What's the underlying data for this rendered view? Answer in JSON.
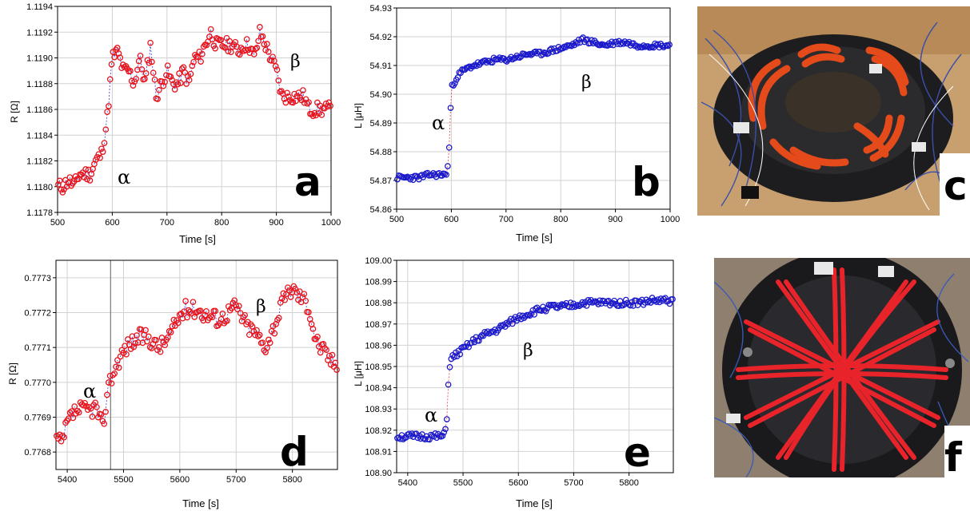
{
  "colors": {
    "red_marker": "#e8131b",
    "blue_marker": "#1a1acc",
    "blue_line": "#3a3ad8",
    "red_line": "#e0444a",
    "grid": "#d2d2d2"
  },
  "chart_data": [
    {
      "type": "scatter",
      "panel": "a",
      "xlabel": "Time [s]",
      "ylabel": "R [Ω]",
      "xlim": [
        500,
        1000
      ],
      "ylim": [
        1.1178,
        1.1194
      ],
      "xticks": [
        "500",
        "600",
        "700",
        "800",
        "900",
        "1000"
      ],
      "yticks": [
        "1.1178",
        "1.1180",
        "1.1182",
        "1.1184",
        "1.1186",
        "1.1188",
        "1.1190",
        "1.1192",
        "1.1194"
      ],
      "grid": true,
      "annotations": [
        "α",
        "β"
      ],
      "series": [
        {
          "x": [
            500,
            510,
            520,
            530,
            540,
            550,
            560,
            570,
            580,
            590,
            600,
            610,
            620,
            630,
            640,
            650,
            660,
            670,
            680,
            690,
            700,
            710,
            720,
            730,
            740,
            750,
            760,
            770,
            780,
            790,
            800,
            810,
            820,
            830,
            840,
            850,
            860,
            870,
            880,
            890,
            900,
            910,
            920,
            930,
            940,
            950,
            960,
            970,
            980,
            990,
            1000
          ],
          "y": [
            1.118,
            1.118,
            1.11805,
            1.118,
            1.1181,
            1.1181,
            1.1181,
            1.1182,
            1.11825,
            1.1185,
            1.119,
            1.11905,
            1.1189,
            1.1189,
            1.1188,
            1.119,
            1.1188,
            1.1191,
            1.1187,
            1.1188,
            1.1189,
            1.1188,
            1.1188,
            1.1189,
            1.1188,
            1.119,
            1.119,
            1.1191,
            1.1192,
            1.1191,
            1.1191,
            1.1191,
            1.1191,
            1.11905,
            1.1191,
            1.1191,
            1.119,
            1.1192,
            1.1191,
            1.119,
            1.1189,
            1.1187,
            1.1187,
            1.1187,
            1.1187,
            1.1187,
            1.1186,
            1.1186,
            1.1186,
            1.1186,
            1.1186
          ]
        }
      ]
    },
    {
      "type": "scatter",
      "panel": "b",
      "xlabel": "Time [s]",
      "ylabel": "L [μH]",
      "xlim": [
        500,
        1000
      ],
      "ylim": [
        54.86,
        54.93
      ],
      "xticks": [
        "500",
        "600",
        "700",
        "800",
        "900",
        "1000"
      ],
      "yticks": [
        "54.86",
        "54.87",
        "54.88",
        "54.89",
        "54.90",
        "54.91",
        "54.92",
        "54.93"
      ],
      "grid": true,
      "annotations": [
        "α",
        "β"
      ],
      "series": [
        {
          "x": [
            500,
            520,
            540,
            560,
            580,
            590,
            595,
            600,
            610,
            620,
            640,
            660,
            680,
            700,
            720,
            740,
            760,
            780,
            800,
            820,
            840,
            860,
            880,
            900,
            920,
            940,
            960,
            980,
            1000
          ],
          "y": [
            54.871,
            54.871,
            54.871,
            54.872,
            54.872,
            54.872,
            54.876,
            54.902,
            54.906,
            54.908,
            54.91,
            54.911,
            54.912,
            54.912,
            54.913,
            54.914,
            54.914,
            54.915,
            54.916,
            54.917,
            54.919,
            54.918,
            54.917,
            54.918,
            54.918,
            54.917,
            54.917,
            54.917,
            54.917
          ]
        }
      ]
    },
    {
      "type": "scatter",
      "panel": "d",
      "xlabel": "Time [s]",
      "ylabel": "R [Ω]",
      "xlim": [
        5380,
        5880
      ],
      "ylim": [
        0.77675,
        0.77735
      ],
      "xticks": [
        "5400",
        "5500",
        "5600",
        "5700",
        "5800"
      ],
      "yticks": [
        "0.7768",
        "0.7769",
        "0.7770",
        "0.7771",
        "0.7772",
        "0.7773"
      ],
      "grid": true,
      "annotations": [
        "α",
        "β"
      ],
      "series": [
        {
          "x": [
            5380,
            5390,
            5400,
            5410,
            5420,
            5430,
            5440,
            5450,
            5460,
            5465,
            5470,
            5480,
            5490,
            5500,
            5510,
            5520,
            5530,
            5540,
            5550,
            5560,
            5570,
            5580,
            5590,
            5600,
            5610,
            5620,
            5630,
            5640,
            5650,
            5660,
            5670,
            5680,
            5690,
            5700,
            5710,
            5720,
            5730,
            5740,
            5750,
            5760,
            5770,
            5780,
            5790,
            5800,
            5810,
            5820,
            5830,
            5840,
            5850,
            5860,
            5870,
            5880
          ],
          "y": [
            0.77684,
            0.77682,
            0.77688,
            0.77691,
            0.77692,
            0.77692,
            0.77692,
            0.77693,
            0.77689,
            0.77685,
            0.77698,
            0.77702,
            0.77706,
            0.77709,
            0.77711,
            0.77712,
            0.77713,
            0.77713,
            0.77712,
            0.7771,
            0.77711,
            0.77713,
            0.77716,
            0.77719,
            0.77721,
            0.77721,
            0.77721,
            0.7772,
            0.77719,
            0.77719,
            0.77718,
            0.77719,
            0.77721,
            0.77722,
            0.77719,
            0.77716,
            0.77715,
            0.77713,
            0.7771,
            0.77713,
            0.77717,
            0.77722,
            0.77725,
            0.77727,
            0.77725,
            0.77724,
            0.77721,
            0.77713,
            0.7771,
            0.77708,
            0.77706,
            0.77705
          ]
        }
      ]
    },
    {
      "type": "scatter",
      "panel": "e",
      "xlabel": "Time [s]",
      "ylabel": "L [μH]",
      "xlim": [
        5380,
        5880
      ],
      "ylim": [
        108.9,
        109.0
      ],
      "xticks": [
        "5400",
        "5500",
        "5600",
        "5700",
        "5800"
      ],
      "yticks": [
        "108.90",
        "108.91",
        "108.92",
        "108.93",
        "108.94",
        "108.95",
        "108.96",
        "108.97",
        "108.98",
        "108.99",
        "109.00"
      ],
      "grid": true,
      "annotations": [
        "α",
        "β"
      ],
      "series": [
        {
          "x": [
            5380,
            5400,
            5420,
            5440,
            5460,
            5465,
            5470,
            5475,
            5480,
            5500,
            5520,
            5540,
            5560,
            5580,
            5600,
            5620,
            5640,
            5660,
            5680,
            5700,
            5720,
            5740,
            5760,
            5780,
            5800,
            5820,
            5840,
            5860,
            5880
          ],
          "y": [
            108.917,
            108.917,
            108.917,
            108.917,
            108.917,
            108.917,
            108.922,
            108.95,
            108.954,
            108.958,
            108.962,
            108.965,
            108.967,
            108.97,
            108.973,
            108.975,
            108.977,
            108.978,
            108.978,
            108.979,
            108.98,
            108.98,
            108.98,
            108.98,
            108.98,
            108.98,
            108.981,
            108.981,
            108.981
          ]
        }
      ]
    }
  ],
  "photos": [
    {
      "label": "c",
      "icon": "coil-assembly-photo-icon"
    },
    {
      "label": "f",
      "icon": "coil-assembly-top-photo-icon"
    }
  ]
}
